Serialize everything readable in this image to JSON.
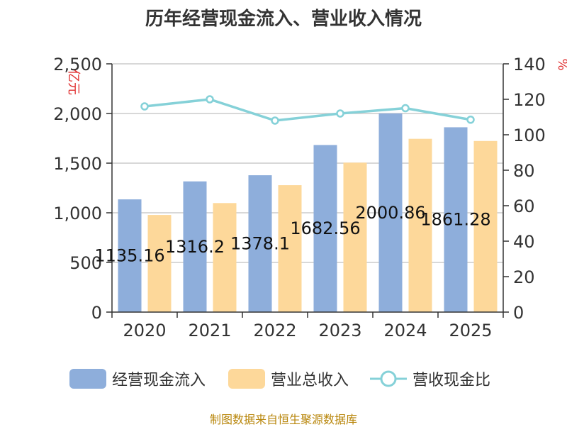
{
  "chart_data": {
    "type": "bar",
    "title": "历年经营现金流入、营业收入情况",
    "categories": [
      "2020",
      "2021",
      "2022",
      "2023",
      "2024",
      "2025"
    ],
    "series": [
      {
        "name": "经营现金流入",
        "axis": "left",
        "kind": "bar",
        "values": [
          1135.16,
          1316.2,
          1378.1,
          1682.56,
          2000.86,
          1861.28
        ],
        "labels": [
          "1135.16",
          "1316.2",
          "1378.1",
          "1682.56",
          "2000.86",
          "1861.28"
        ]
      },
      {
        "name": "营业总收入",
        "axis": "left",
        "kind": "bar",
        "values": [
          978,
          1098,
          1278,
          1505,
          1745,
          1723
        ]
      },
      {
        "name": "营收现金比",
        "axis": "right",
        "kind": "line",
        "values": [
          116,
          120,
          108,
          112,
          115,
          108.5
        ]
      }
    ],
    "left_axis": {
      "label": "亿元",
      "min": 0,
      "max": 2500,
      "ticks": [
        0,
        500,
        1000,
        1500,
        2000,
        2500
      ],
      "tick_labels": [
        "0",
        "500",
        "1,000",
        "1,500",
        "2,000",
        "2,500"
      ]
    },
    "right_axis": {
      "label": "%",
      "min": 0,
      "max": 140,
      "ticks": [
        0,
        20,
        40,
        60,
        80,
        100,
        120,
        140
      ],
      "tick_labels": [
        "0",
        "20",
        "40",
        "60",
        "80",
        "100",
        "120",
        "140"
      ]
    },
    "grid": true,
    "legend_position": "bottom"
  },
  "colors": {
    "bar1": "#8eaedb",
    "bar2": "#fdd89a",
    "line": "#85d1d8",
    "axis_label": "#e03030",
    "source": "#b8860b"
  },
  "legend": [
    {
      "label": "经营现金流入"
    },
    {
      "label": "营业总收入"
    },
    {
      "label": "营收现金比"
    }
  ],
  "source_text": "制图数据来自恒生聚源数据库"
}
